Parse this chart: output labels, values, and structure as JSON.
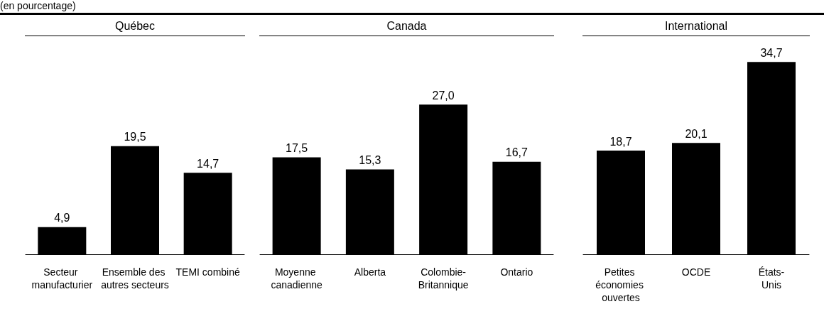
{
  "chart_data": [
    {
      "type": "bar",
      "title": "Québec",
      "annotations": [
        "(en pourcentage)"
      ],
      "categories": [
        "Secteur manufacturier",
        "Ensemble des autres secteurs",
        "TEMI combiné"
      ],
      "values": [
        4.9,
        19.5,
        14.7
      ],
      "color": "#000000",
      "data_labels": true,
      "value_labels": [
        "4,9",
        "19,5",
        "14,7"
      ]
    },
    {
      "type": "bar",
      "title": "Canada",
      "categories": [
        "Moyenne canadienne",
        "Alberta",
        "Colombie-Britannique",
        "Ontario"
      ],
      "values": [
        17.5,
        15.3,
        27.0,
        16.7
      ],
      "color": "#000000",
      "data_labels": true,
      "value_labels": [
        "17,5",
        "15,3",
        "27,0",
        "16,7"
      ]
    },
    {
      "type": "bar",
      "title": "International",
      "categories": [
        "Petites économies ouvertes",
        "OCDE",
        "États-Unis"
      ],
      "values": [
        18.7,
        20.1,
        34.7
      ],
      "color": "#000000",
      "data_labels": true,
      "value_labels": [
        "18,7",
        "20,1",
        "34,7"
      ]
    }
  ]
}
